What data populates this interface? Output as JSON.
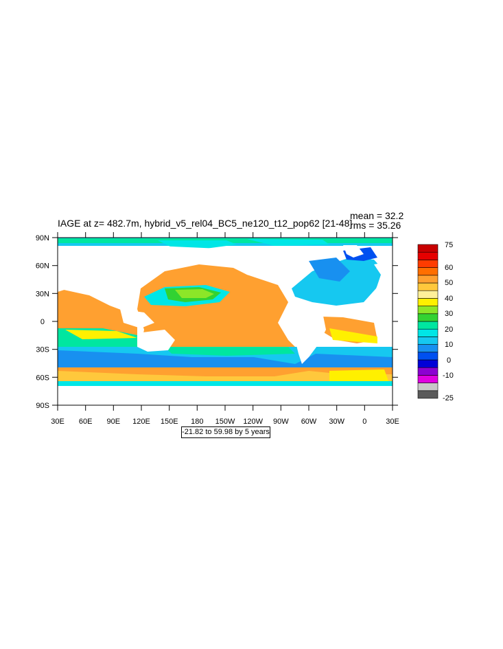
{
  "title": "IAGE at z= 482.7m, hybrid_v5_rel04_BC5_ne120_t12_pop62 [21-48]",
  "stats": {
    "mean": "mean = 32.2",
    "rms": "rms = 35.26"
  },
  "range_note": "-21.82 to 59.98 by 5 years",
  "lat_labels": [
    "90N",
    "60N",
    "30N",
    "0",
    "30S",
    "60S",
    "90S"
  ],
  "lon_labels": [
    "30E",
    "60E",
    "90E",
    "120E",
    "150E",
    "180",
    "150W",
    "120W",
    "90W",
    "60W",
    "30W",
    "0",
    "30E"
  ],
  "colorbar": {
    "labels": [
      "75",
      "60",
      "50",
      "40",
      "30",
      "20",
      "10",
      "0",
      "-10",
      "-25"
    ],
    "colors": [
      "#5a5a5a",
      "#c8c8c8",
      "#e000e0",
      "#8c00d2",
      "#0000d7",
      "#0050f0",
      "#1890f0",
      "#16c8f0",
      "#00e6e6",
      "#00e6a0",
      "#32d232",
      "#8ce628",
      "#fff000",
      "#fff09a",
      "#ffc83c",
      "#ffa030",
      "#ff6e00",
      "#ff3c00",
      "#e60000",
      "#c80000"
    ]
  },
  "colors": {
    "land": "#ffffff",
    "frame": "#000000"
  }
}
